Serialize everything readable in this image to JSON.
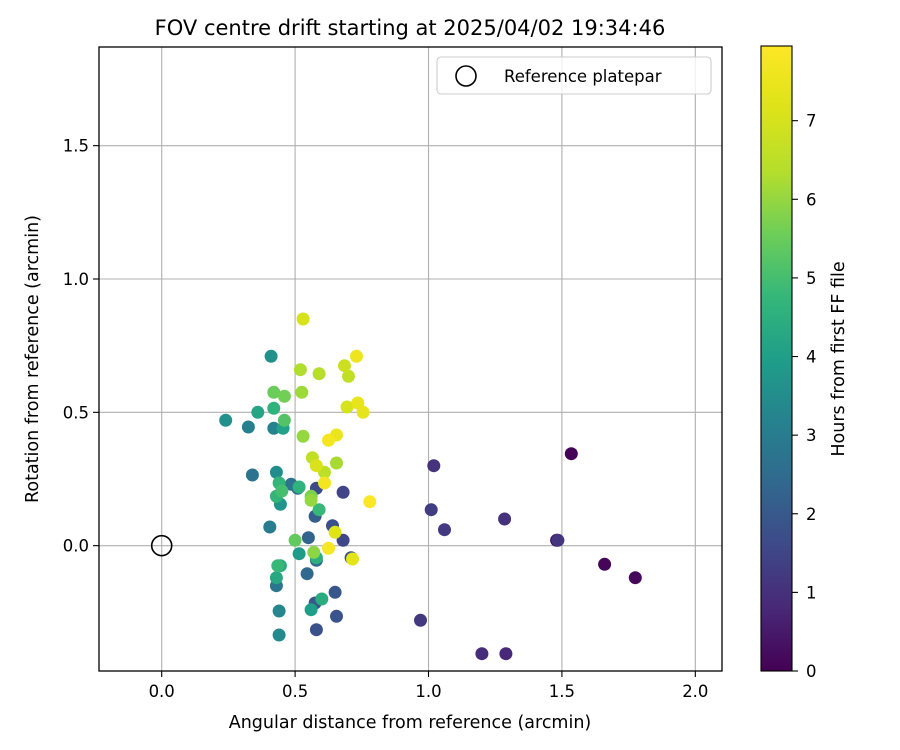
{
  "chart_data": {
    "type": "scatter",
    "title": "FOV centre drift starting at 2025/04/02 19:34:46",
    "xlabel": "Angular distance from reference (arcmin)",
    "ylabel": "Rotation from reference (arcmin)",
    "xlim": [
      -0.235,
      2.1
    ],
    "ylim": [
      -0.47,
      1.87
    ],
    "xticks": [
      0.0,
      0.5,
      1.0,
      1.5,
      2.0
    ],
    "xtick_labels": [
      "0.0",
      "0.5",
      "1.0",
      "1.5",
      "2.0"
    ],
    "yticks": [
      0.0,
      0.5,
      1.0,
      1.5
    ],
    "ytick_labels": [
      "0.0",
      "0.5",
      "1.0",
      "1.5"
    ],
    "grid": true,
    "legend": {
      "position": "top-right",
      "label": "Reference platepar",
      "marker": "open-circle"
    },
    "reference_point": {
      "x": 0.0,
      "y": 0.0
    },
    "colorbar": {
      "label": "Hours from first FF file",
      "colormap": "viridis",
      "range": [
        0,
        7.95
      ],
      "ticks": [
        0,
        1,
        2,
        3,
        4,
        5,
        6,
        7
      ],
      "tick_labels": [
        "0",
        "1",
        "2",
        "3",
        "4",
        "5",
        "6",
        "7"
      ]
    },
    "points": [
      {
        "x": 1.535,
        "y": 0.345,
        "c": 0.05
      },
      {
        "x": 1.66,
        "y": -0.07,
        "c": 0.1
      },
      {
        "x": 1.775,
        "y": -0.12,
        "c": 0.15
      },
      {
        "x": 1.48,
        "y": 0.02,
        "c": 0.3
      },
      {
        "x": 1.29,
        "y": -0.405,
        "c": 0.8
      },
      {
        "x": 1.2,
        "y": -0.405,
        "c": 0.9
      },
      {
        "x": 1.285,
        "y": 0.1,
        "c": 1.0
      },
      {
        "x": 1.02,
        "y": 0.3,
        "c": 1.05
      },
      {
        "x": 1.485,
        "y": 0.02,
        "c": 1.1
      },
      {
        "x": 0.97,
        "y": -0.28,
        "c": 1.2
      },
      {
        "x": 1.06,
        "y": 0.06,
        "c": 1.2
      },
      {
        "x": 1.01,
        "y": 0.135,
        "c": 1.3
      },
      {
        "x": 0.68,
        "y": 0.2,
        "c": 1.5
      },
      {
        "x": 0.68,
        "y": 0.02,
        "c": 1.55
      },
      {
        "x": 0.58,
        "y": 0.215,
        "c": 1.65
      },
      {
        "x": 0.64,
        "y": 0.075,
        "c": 1.75
      },
      {
        "x": 0.71,
        "y": -0.045,
        "c": 1.8
      },
      {
        "x": 0.58,
        "y": -0.315,
        "c": 1.8
      },
      {
        "x": 0.655,
        "y": -0.265,
        "c": 1.85
      },
      {
        "x": 0.575,
        "y": -0.215,
        "c": 1.95
      },
      {
        "x": 0.65,
        "y": -0.175,
        "c": 1.95
      },
      {
        "x": 0.575,
        "y": 0.11,
        "c": 2.1
      },
      {
        "x": 0.55,
        "y": 0.03,
        "c": 2.3
      },
      {
        "x": 0.545,
        "y": -0.105,
        "c": 2.4
      },
      {
        "x": 0.58,
        "y": -0.055,
        "c": 2.5
      },
      {
        "x": 0.51,
        "y": 0.215,
        "c": 2.6
      },
      {
        "x": 0.485,
        "y": 0.23,
        "c": 2.7
      },
      {
        "x": 0.34,
        "y": 0.265,
        "c": 2.75
      },
      {
        "x": 0.43,
        "y": -0.15,
        "c": 2.8
      },
      {
        "x": 0.405,
        "y": 0.07,
        "c": 3.0
      },
      {
        "x": 0.325,
        "y": 0.445,
        "c": 3.1
      },
      {
        "x": 0.42,
        "y": 0.44,
        "c": 3.2
      },
      {
        "x": 0.44,
        "y": -0.245,
        "c": 3.3
      },
      {
        "x": 0.44,
        "y": -0.335,
        "c": 3.4
      },
      {
        "x": 0.43,
        "y": 0.275,
        "c": 3.5
      },
      {
        "x": 0.24,
        "y": 0.47,
        "c": 3.6
      },
      {
        "x": 0.41,
        "y": 0.71,
        "c": 3.6
      },
      {
        "x": 0.445,
        "y": 0.155,
        "c": 3.7
      },
      {
        "x": 0.515,
        "y": -0.03,
        "c": 3.9
      },
      {
        "x": 0.56,
        "y": -0.24,
        "c": 4.0
      },
      {
        "x": 0.455,
        "y": 0.44,
        "c": 4.1
      },
      {
        "x": 0.36,
        "y": 0.5,
        "c": 4.2
      },
      {
        "x": 0.43,
        "y": -0.12,
        "c": 4.3
      },
      {
        "x": 0.445,
        "y": -0.075,
        "c": 4.4
      },
      {
        "x": 0.6,
        "y": -0.2,
        "c": 4.4
      },
      {
        "x": 0.58,
        "y": -0.045,
        "c": 4.5
      },
      {
        "x": 0.42,
        "y": 0.515,
        "c": 4.6
      },
      {
        "x": 0.515,
        "y": 0.22,
        "c": 4.6
      },
      {
        "x": 0.43,
        "y": 0.185,
        "c": 4.7
      },
      {
        "x": 0.44,
        "y": 0.235,
        "c": 4.7
      },
      {
        "x": 0.435,
        "y": -0.075,
        "c": 4.8
      },
      {
        "x": 0.59,
        "y": 0.135,
        "c": 4.8
      },
      {
        "x": 0.45,
        "y": 0.205,
        "c": 5.0
      },
      {
        "x": 0.46,
        "y": 0.47,
        "c": 5.2
      },
      {
        "x": 0.5,
        "y": 0.02,
        "c": 5.4
      },
      {
        "x": 0.42,
        "y": 0.575,
        "c": 5.5
      },
      {
        "x": 0.46,
        "y": 0.56,
        "c": 5.6
      },
      {
        "x": 0.56,
        "y": 0.185,
        "c": 5.7
      },
      {
        "x": 0.57,
        "y": -0.025,
        "c": 5.9
      },
      {
        "x": 0.56,
        "y": 0.17,
        "c": 6.0
      },
      {
        "x": 0.53,
        "y": 0.41,
        "c": 6.0
      },
      {
        "x": 0.525,
        "y": 0.575,
        "c": 6.1
      },
      {
        "x": 0.655,
        "y": 0.31,
        "c": 6.2
      },
      {
        "x": 0.52,
        "y": 0.66,
        "c": 6.3
      },
      {
        "x": 0.59,
        "y": 0.645,
        "c": 6.4
      },
      {
        "x": 0.61,
        "y": 0.275,
        "c": 6.5
      },
      {
        "x": 0.565,
        "y": 0.33,
        "c": 6.6
      },
      {
        "x": 0.7,
        "y": 0.635,
        "c": 6.6
      },
      {
        "x": 0.685,
        "y": 0.675,
        "c": 6.8
      },
      {
        "x": 0.53,
        "y": 0.85,
        "c": 7.0
      },
      {
        "x": 0.695,
        "y": 0.52,
        "c": 7.0
      },
      {
        "x": 0.58,
        "y": 0.3,
        "c": 7.1
      },
      {
        "x": 0.65,
        "y": 0.05,
        "c": 7.2
      },
      {
        "x": 0.715,
        "y": -0.05,
        "c": 7.3
      },
      {
        "x": 0.735,
        "y": 0.535,
        "c": 7.4
      },
      {
        "x": 0.755,
        "y": 0.5,
        "c": 7.4
      },
      {
        "x": 0.655,
        "y": 0.415,
        "c": 7.5
      },
      {
        "x": 0.73,
        "y": 0.71,
        "c": 7.6
      },
      {
        "x": 0.625,
        "y": 0.395,
        "c": 7.7
      },
      {
        "x": 0.61,
        "y": 0.235,
        "c": 7.7
      },
      {
        "x": 0.625,
        "y": -0.01,
        "c": 7.8
      },
      {
        "x": 0.78,
        "y": 0.165,
        "c": 7.9
      }
    ]
  }
}
